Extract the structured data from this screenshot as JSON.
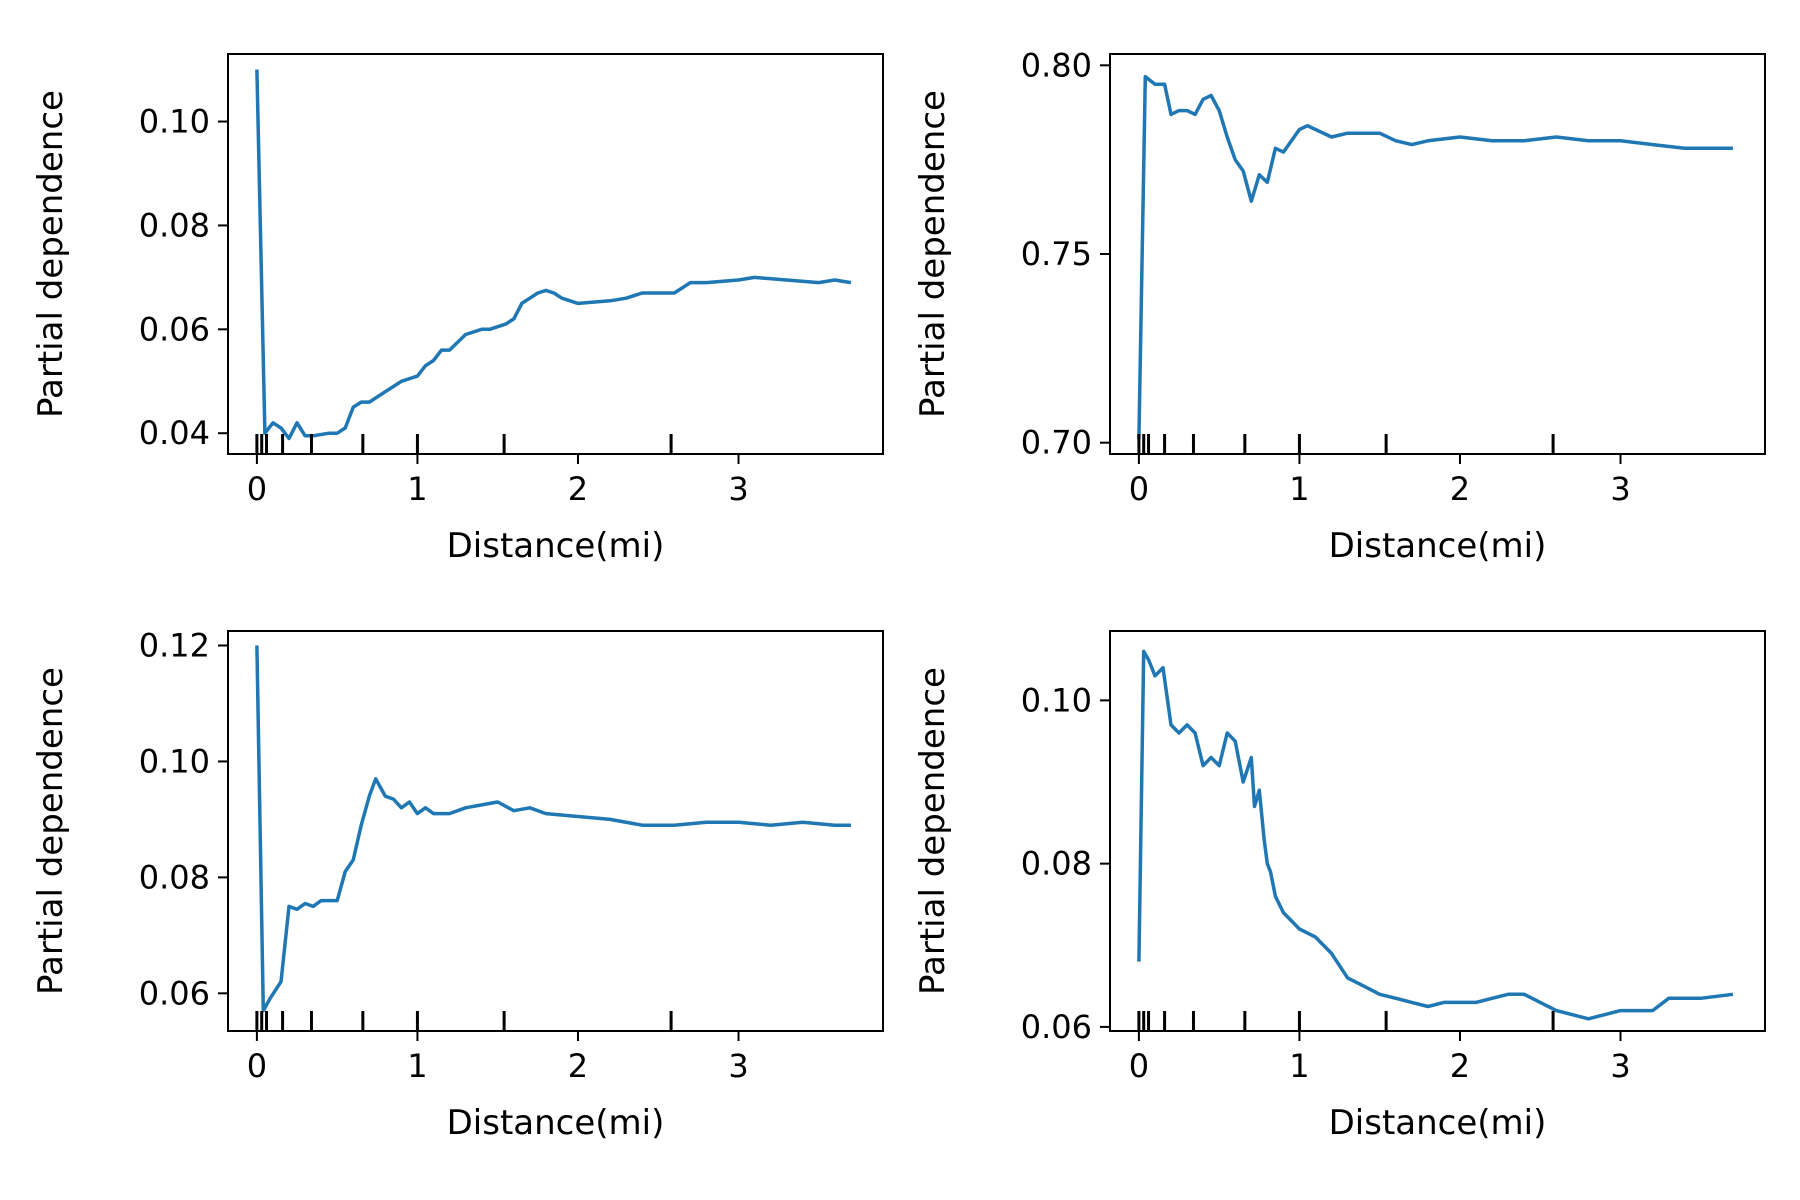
{
  "line_color": "#1f77b4",
  "rug_ticks": [
    0.0,
    0.03,
    0.06,
    0.16,
    0.34,
    0.66,
    1.0,
    1.54,
    2.58
  ],
  "chart_data": [
    {
      "type": "line",
      "xlabel": "Distance(mi)",
      "ylabel": "Partial dependence",
      "xlim": [
        -0.18,
        3.9
      ],
      "ylim": [
        0.036,
        0.113
      ],
      "xticks": [
        0,
        1,
        2,
        3
      ],
      "yticks": [
        0.04,
        0.06,
        0.08,
        0.1
      ],
      "ytick_labels": [
        "0.04",
        "0.06",
        "0.08",
        "0.10"
      ],
      "grid": false,
      "x": [
        0.0,
        0.05,
        0.1,
        0.15,
        0.2,
        0.25,
        0.3,
        0.35,
        0.45,
        0.5,
        0.55,
        0.6,
        0.65,
        0.7,
        0.8,
        0.85,
        0.9,
        1.0,
        1.05,
        1.1,
        1.15,
        1.2,
        1.3,
        1.4,
        1.45,
        1.55,
        1.6,
        1.65,
        1.7,
        1.75,
        1.8,
        1.85,
        1.9,
        2.0,
        2.2,
        2.3,
        2.4,
        2.5,
        2.6,
        2.7,
        2.8,
        3.0,
        3.1,
        3.3,
        3.5,
        3.6,
        3.7
      ],
      "y": [
        0.11,
        0.04,
        0.042,
        0.041,
        0.039,
        0.042,
        0.0395,
        0.0395,
        0.04,
        0.04,
        0.041,
        0.045,
        0.046,
        0.046,
        0.048,
        0.049,
        0.05,
        0.051,
        0.053,
        0.054,
        0.056,
        0.056,
        0.059,
        0.06,
        0.06,
        0.061,
        0.062,
        0.065,
        0.066,
        0.067,
        0.0675,
        0.067,
        0.066,
        0.065,
        0.0655,
        0.066,
        0.067,
        0.067,
        0.067,
        0.069,
        0.069,
        0.0695,
        0.07,
        0.0695,
        0.069,
        0.0695,
        0.069
      ]
    },
    {
      "type": "line",
      "xlabel": "Distance(mi)",
      "ylabel": "Partial dependence",
      "xlim": [
        -0.18,
        3.9
      ],
      "ylim": [
        0.697,
        0.803
      ],
      "xticks": [
        0,
        1,
        2,
        3
      ],
      "yticks": [
        0.7,
        0.75,
        0.8
      ],
      "ytick_labels": [
        "0.70",
        "0.75",
        "0.80"
      ],
      "grid": false,
      "x": [
        0.0,
        0.04,
        0.1,
        0.16,
        0.2,
        0.25,
        0.3,
        0.35,
        0.4,
        0.45,
        0.5,
        0.55,
        0.6,
        0.65,
        0.7,
        0.75,
        0.8,
        0.85,
        0.9,
        1.0,
        1.05,
        1.1,
        1.2,
        1.3,
        1.4,
        1.5,
        1.6,
        1.7,
        1.8,
        2.0,
        2.2,
        2.4,
        2.6,
        2.8,
        3.0,
        3.2,
        3.4,
        3.6,
        3.7
      ],
      "y": [
        0.701,
        0.797,
        0.795,
        0.795,
        0.787,
        0.788,
        0.788,
        0.787,
        0.791,
        0.792,
        0.788,
        0.781,
        0.775,
        0.772,
        0.764,
        0.771,
        0.769,
        0.778,
        0.777,
        0.783,
        0.784,
        0.783,
        0.781,
        0.782,
        0.782,
        0.782,
        0.78,
        0.779,
        0.78,
        0.781,
        0.78,
        0.78,
        0.781,
        0.78,
        0.78,
        0.779,
        0.778,
        0.778,
        0.778
      ]
    },
    {
      "type": "line",
      "xlabel": "Distance(mi)",
      "ylabel": "Partial dependence",
      "xlim": [
        -0.18,
        3.9
      ],
      "ylim": [
        0.0535,
        0.1225
      ],
      "xticks": [
        0,
        1,
        2,
        3
      ],
      "yticks": [
        0.06,
        0.08,
        0.1,
        0.12
      ],
      "ytick_labels": [
        "0.06",
        "0.08",
        "0.10",
        "0.12"
      ],
      "grid": false,
      "x": [
        0.0,
        0.04,
        0.08,
        0.15,
        0.2,
        0.25,
        0.3,
        0.35,
        0.4,
        0.5,
        0.55,
        0.6,
        0.65,
        0.7,
        0.74,
        0.8,
        0.85,
        0.9,
        0.95,
        1.0,
        1.05,
        1.1,
        1.2,
        1.3,
        1.4,
        1.5,
        1.6,
        1.7,
        1.8,
        2.0,
        2.2,
        2.4,
        2.6,
        2.8,
        3.0,
        3.2,
        3.4,
        3.6,
        3.7
      ],
      "y": [
        0.12,
        0.057,
        0.059,
        0.062,
        0.075,
        0.0745,
        0.0755,
        0.075,
        0.076,
        0.076,
        0.081,
        0.083,
        0.089,
        0.094,
        0.097,
        0.094,
        0.0935,
        0.092,
        0.093,
        0.091,
        0.092,
        0.091,
        0.091,
        0.092,
        0.0925,
        0.093,
        0.0915,
        0.092,
        0.091,
        0.0905,
        0.09,
        0.089,
        0.089,
        0.0895,
        0.0895,
        0.089,
        0.0895,
        0.089,
        0.089
      ]
    },
    {
      "type": "line",
      "xlabel": "Distance(mi)",
      "ylabel": "Partial dependence",
      "xlim": [
        -0.18,
        3.9
      ],
      "ylim": [
        0.0595,
        0.1085
      ],
      "xticks": [
        0,
        1,
        2,
        3
      ],
      "yticks": [
        0.06,
        0.08,
        0.1
      ],
      "ytick_labels": [
        "0.06",
        "0.08",
        "0.10"
      ],
      "grid": false,
      "x": [
        0.0,
        0.03,
        0.06,
        0.1,
        0.15,
        0.2,
        0.25,
        0.3,
        0.35,
        0.4,
        0.45,
        0.5,
        0.55,
        0.6,
        0.65,
        0.7,
        0.72,
        0.75,
        0.78,
        0.8,
        0.82,
        0.85,
        0.9,
        1.0,
        1.1,
        1.2,
        1.3,
        1.4,
        1.5,
        1.6,
        1.7,
        1.8,
        1.9,
        2.0,
        2.1,
        2.2,
        2.3,
        2.4,
        2.5,
        2.6,
        2.7,
        2.8,
        2.9,
        3.0,
        3.2,
        3.3,
        3.5,
        3.7
      ],
      "y": [
        0.068,
        0.106,
        0.105,
        0.103,
        0.104,
        0.097,
        0.096,
        0.097,
        0.096,
        0.092,
        0.093,
        0.092,
        0.096,
        0.095,
        0.09,
        0.093,
        0.087,
        0.089,
        0.083,
        0.08,
        0.079,
        0.076,
        0.074,
        0.072,
        0.071,
        0.069,
        0.066,
        0.065,
        0.064,
        0.0635,
        0.063,
        0.0625,
        0.063,
        0.063,
        0.063,
        0.0635,
        0.064,
        0.064,
        0.063,
        0.062,
        0.0615,
        0.061,
        0.0615,
        0.062,
        0.062,
        0.0635,
        0.0635,
        0.064
      ]
    }
  ]
}
